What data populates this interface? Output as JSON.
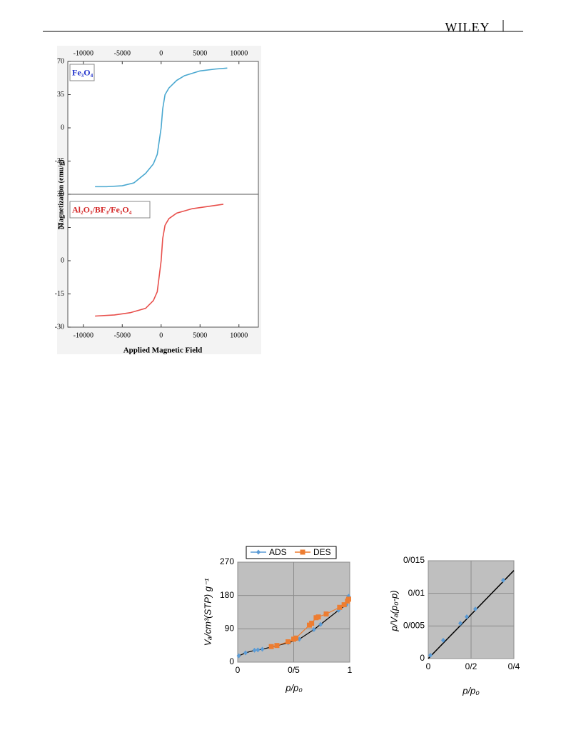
{
  "header": {
    "publisher": "WILEY"
  },
  "chart_data": [
    {
      "type": "line",
      "label": "Fe₃O₄",
      "ylabel": "Magnetization (emu/g)",
      "xlim": [
        -12000,
        12500
      ],
      "xticks": [
        -10000,
        -5000,
        0,
        5000,
        10000
      ],
      "ylim": [
        -70,
        70
      ],
      "yticks": [
        70,
        35,
        0,
        -35
      ],
      "series": [
        {
          "color": "#4aa8d0",
          "x": [
            -8500,
            -7000,
            -5000,
            -3500,
            -2000,
            -1000,
            -500,
            0,
            200,
            500,
            1000,
            2000,
            3000,
            5000,
            7000,
            8500
          ],
          "values": [
            -62,
            -62,
            -61,
            -58,
            -48,
            -38,
            -28,
            0,
            20,
            35,
            42,
            50,
            55,
            60,
            62,
            63
          ]
        }
      ]
    },
    {
      "type": "line",
      "label": "Al₂O₃/BF₃/Fe₃O₄",
      "xlabel": "Applied Magnetic Field",
      "xlim": [
        -12000,
        12500
      ],
      "xticks": [
        -10000,
        -5000,
        0,
        5000,
        10000
      ],
      "ylim": [
        -30,
        30
      ],
      "yticks": [
        30,
        15,
        0,
        -15,
        -30
      ],
      "series": [
        {
          "color": "#e8504c",
          "x": [
            -8500,
            -6000,
            -4000,
            -2000,
            -1000,
            -500,
            0,
            200,
            500,
            1000,
            2000,
            4000,
            6000,
            8000
          ],
          "values": [
            -25,
            -24.5,
            -23.5,
            -21.5,
            -18,
            -14,
            0,
            10,
            16,
            19,
            21.5,
            23.5,
            24.5,
            25.5
          ]
        }
      ]
    },
    {
      "type": "line",
      "ylabel": "Vₐ/cm³(STP) g⁻¹",
      "xlabel": "p/p₀",
      "xlim": [
        0,
        1
      ],
      "xticks": [
        0,
        {
          "value": 0.5,
          "label": "0/5"
        },
        1
      ],
      "ylim": [
        0,
        270
      ],
      "yticks": [
        0,
        90,
        180,
        270
      ],
      "grid": true,
      "legend": "top",
      "series": [
        {
          "name": "ADS",
          "color": "#5b9bd5",
          "marker": "diamond",
          "x": [
            0.01,
            0.07,
            0.15,
            0.18,
            0.22,
            0.45,
            0.55,
            0.68,
            0.74,
            0.9,
            0.97,
            0.99
          ],
          "values": [
            17,
            25,
            32,
            33,
            35,
            52,
            62,
            88,
            102,
            140,
            155,
            178
          ]
        },
        {
          "name": "DES",
          "color": "#ed7d31",
          "marker": "square",
          "x": [
            0.3,
            0.35,
            0.45,
            0.5,
            0.52,
            0.64,
            0.66,
            0.7,
            0.72,
            0.79,
            0.91,
            0.95,
            0.98,
            0.99
          ],
          "values": [
            42,
            45,
            55,
            62,
            65,
            100,
            105,
            120,
            122,
            130,
            148,
            155,
            165,
            170
          ]
        }
      ]
    },
    {
      "type": "scatter",
      "ylabel": "p/Vₐ(p₀-p)",
      "xlabel": "p/p₀",
      "xlim": [
        0,
        0.4
      ],
      "xticks": [
        0,
        {
          "value": 0.2,
          "label": "0/2"
        },
        {
          "value": 0.4,
          "label": "0/4"
        }
      ],
      "ylim": [
        0,
        0.015
      ],
      "yticks": [
        0,
        {
          "value": 0.005,
          "label": "0/005"
        },
        {
          "value": 0.01,
          "label": "0/01"
        },
        {
          "value": 0.015,
          "label": "0/015"
        }
      ],
      "grid": true,
      "series": [
        {
          "color": "#5b9bd5",
          "marker": "diamond",
          "x": [
            0.01,
            0.07,
            0.15,
            0.18,
            0.22,
            0.35
          ],
          "values": [
            0.0005,
            0.0028,
            0.0054,
            0.0064,
            0.0076,
            0.012
          ]
        }
      ],
      "fit_line": {
        "color": "#000000",
        "x": [
          0,
          0.4
        ],
        "values": [
          0,
          0.0135
        ]
      }
    }
  ]
}
